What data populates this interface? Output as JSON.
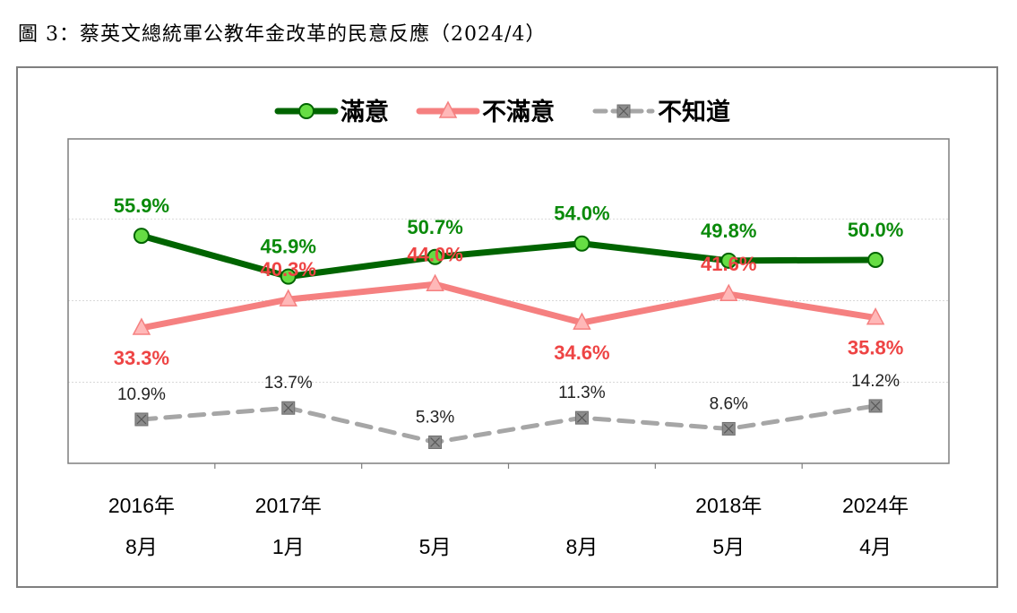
{
  "page_title": "圖 3：蔡英文總統軍公教年金改革的民意反應（2024/4）",
  "chart_data": {
    "type": "line",
    "categories": [
      {
        "year": "2016年",
        "month": "8月"
      },
      {
        "year": "2017年",
        "month": "1月"
      },
      {
        "year": "",
        "month": "5月"
      },
      {
        "year": "",
        "month": "8月"
      },
      {
        "year": "2018年",
        "month": "5月"
      },
      {
        "year": "2024年",
        "month": "4月"
      }
    ],
    "series": [
      {
        "name": "滿意",
        "values": [
          55.9,
          45.9,
          50.7,
          54.0,
          49.8,
          50.0
        ],
        "labels": [
          "55.9%",
          "45.9%",
          "50.7%",
          "54.0%",
          "49.8%",
          "50.0%"
        ],
        "color": "#006400",
        "marker": "circle",
        "marker_fill": "#66dd44",
        "label_color": "#0a8a0a",
        "dashed": false
      },
      {
        "name": "不滿意",
        "values": [
          33.3,
          40.3,
          44.0,
          34.6,
          41.6,
          35.8
        ],
        "labels": [
          "33.3%",
          "40.3%",
          "44.0%",
          "34.6%",
          "41.6%",
          "35.8%"
        ],
        "color": "#f58080",
        "marker": "triangle",
        "marker_fill": "#ffb8b8",
        "label_color": "#ee4444",
        "dashed": false
      },
      {
        "name": "不知道",
        "values": [
          10.9,
          13.7,
          5.3,
          11.3,
          8.6,
          14.2
        ],
        "labels": [
          "10.9%",
          "13.7%",
          "5.3%",
          "11.3%",
          "8.6%",
          "14.2%"
        ],
        "color": "#a6a6a6",
        "marker": "square-x",
        "marker_fill": "#8c8c8c",
        "label_color": "#222222",
        "dashed": true
      }
    ],
    "legend_position": "top",
    "grid": true
  }
}
